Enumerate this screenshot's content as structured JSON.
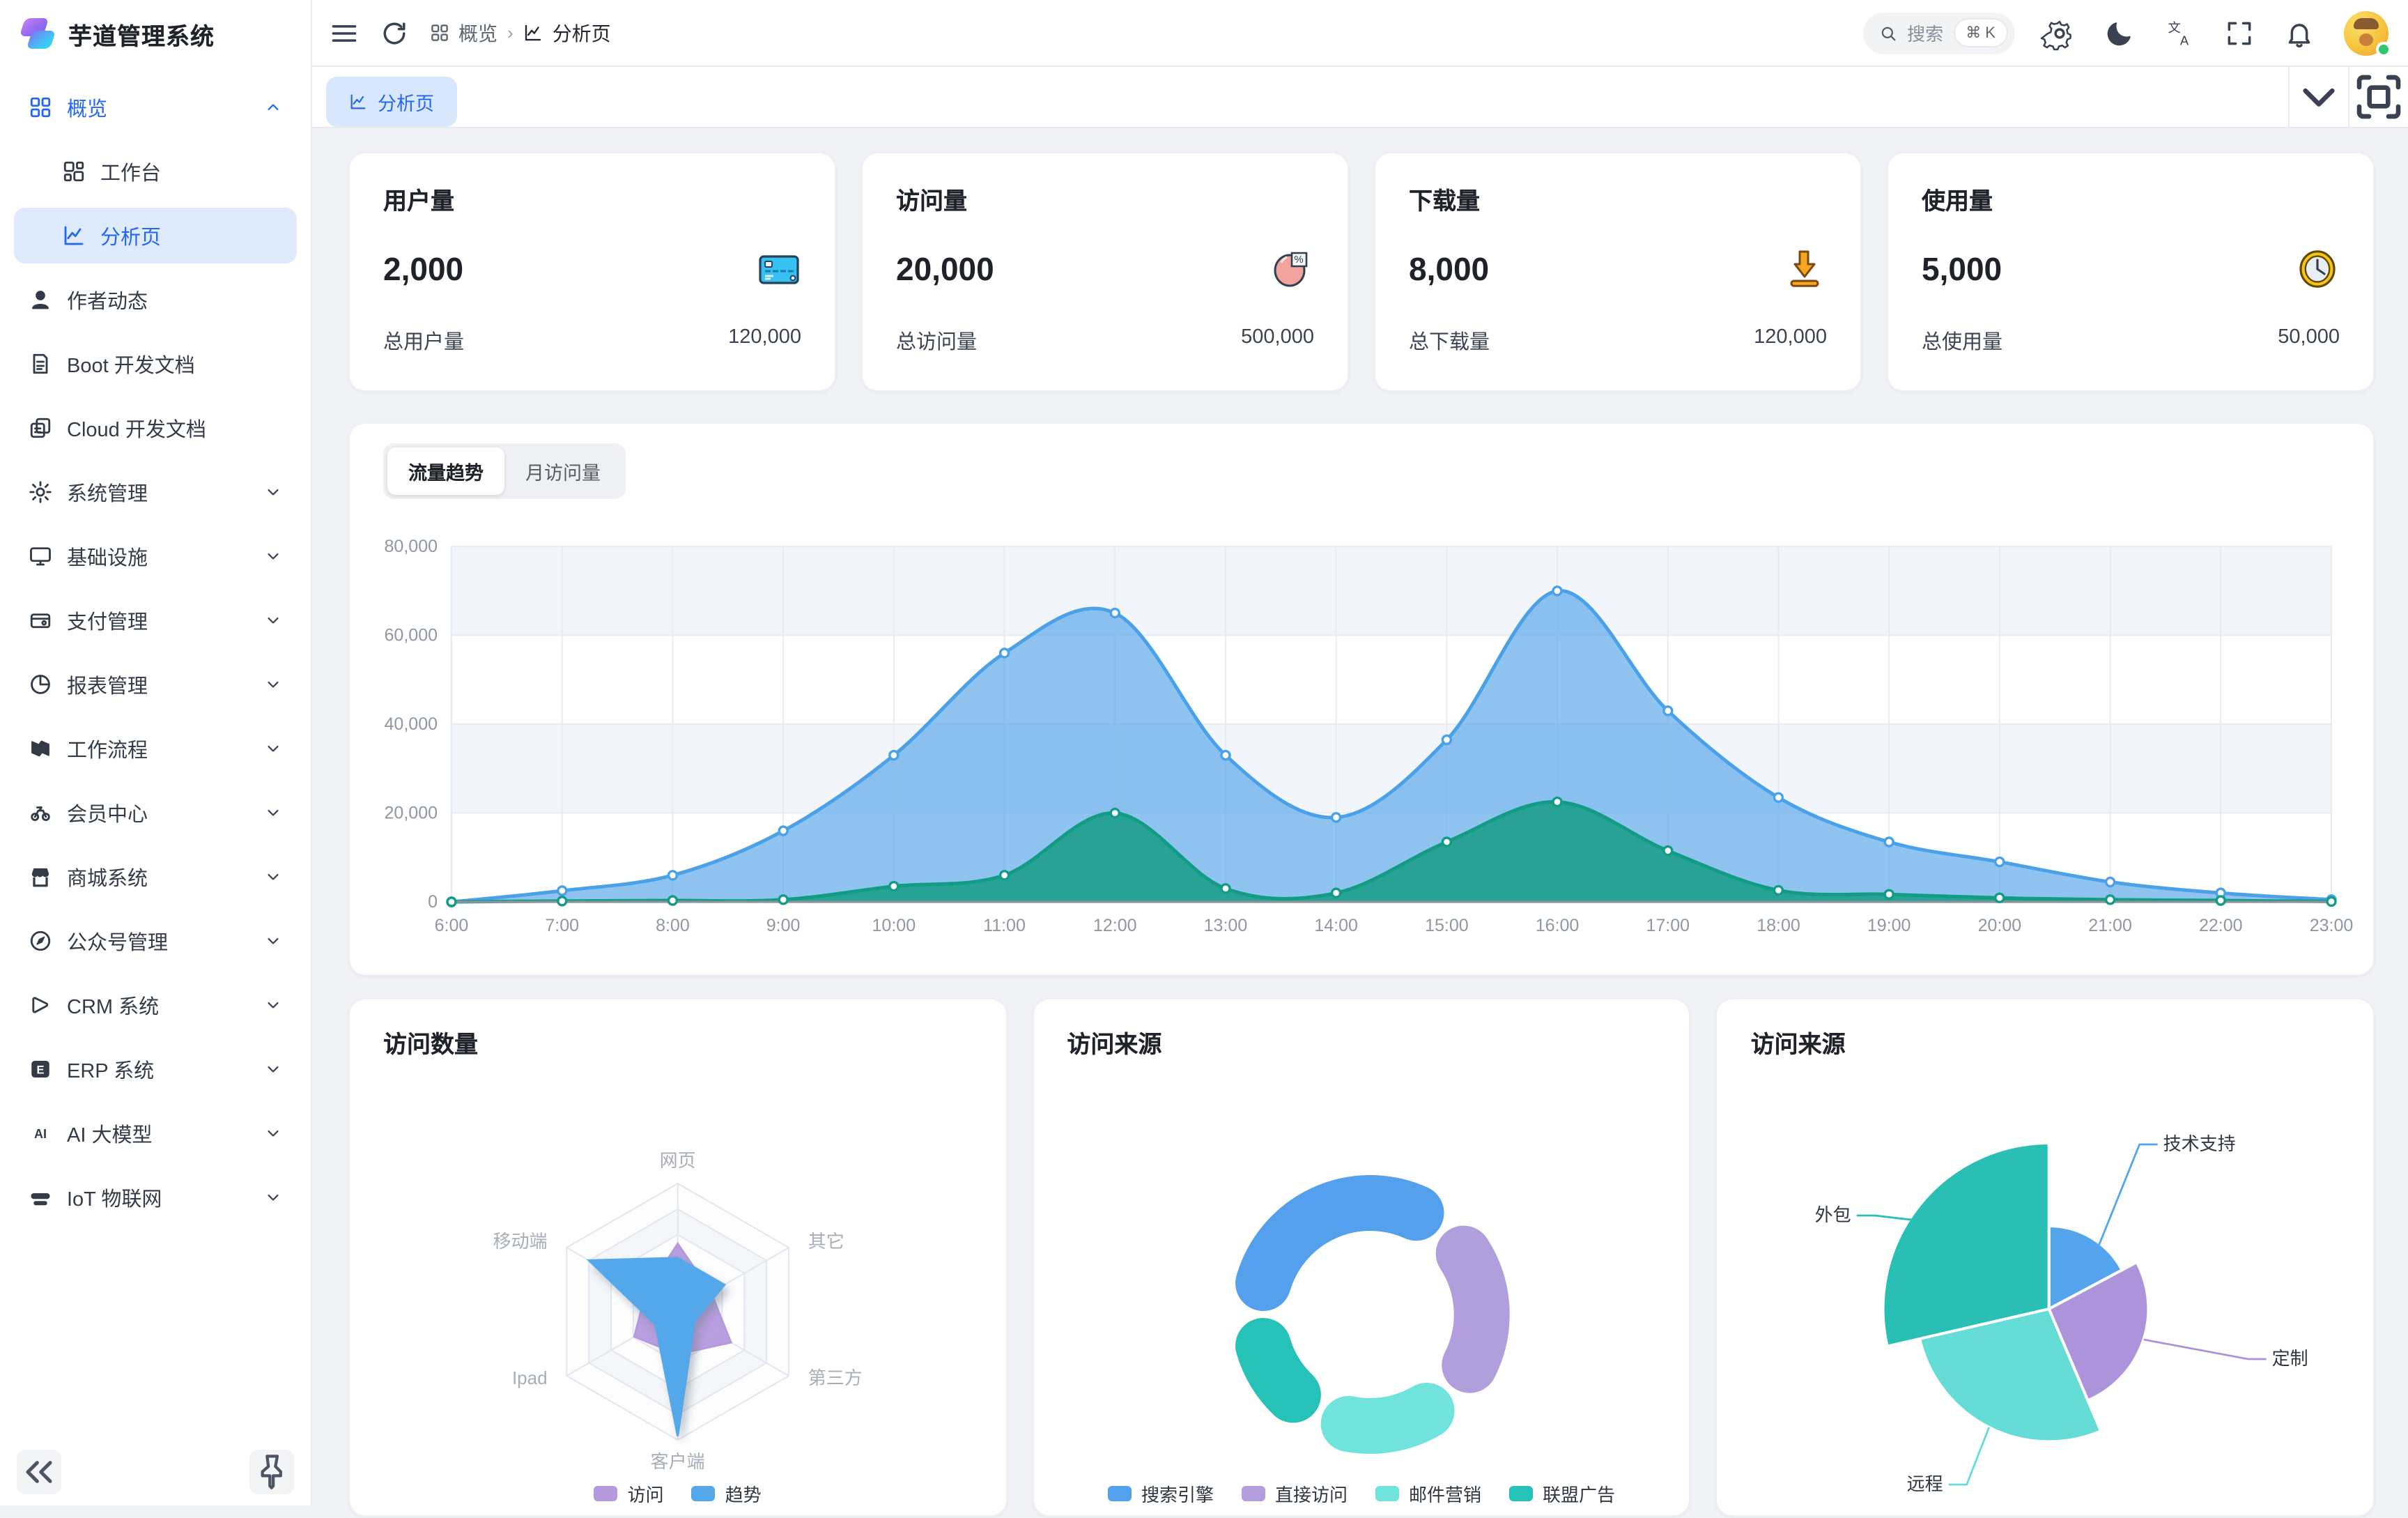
{
  "app": {
    "title": "芋道管理系统"
  },
  "sidebar": {
    "items": [
      {
        "label": "概览",
        "icon": "grid-icon",
        "expanded": true,
        "highlighted": true,
        "children": [
          {
            "label": "工作台",
            "icon": "workbench-icon",
            "active": false
          },
          {
            "label": "分析页",
            "icon": "analytics-icon",
            "active": true
          }
        ]
      },
      {
        "label": "作者动态",
        "icon": "user-icon"
      },
      {
        "label": "Boot 开发文档",
        "icon": "document-icon"
      },
      {
        "label": "Cloud 开发文档",
        "icon": "copy-icon"
      },
      {
        "label": "系统管理",
        "icon": "gear-icon",
        "expandable": true
      },
      {
        "label": "基础设施",
        "icon": "monitor-icon",
        "expandable": true
      },
      {
        "label": "支付管理",
        "icon": "wallet-icon",
        "expandable": true
      },
      {
        "label": "报表管理",
        "icon": "report-icon",
        "expandable": true
      },
      {
        "label": "工作流程",
        "icon": "workflow-icon",
        "expandable": true
      },
      {
        "label": "会员中心",
        "icon": "member-icon",
        "expandable": true
      },
      {
        "label": "商城系统",
        "icon": "store-icon",
        "expandable": true
      },
      {
        "label": "公众号管理",
        "icon": "compass-icon",
        "expandable": true
      },
      {
        "label": "CRM 系统",
        "icon": "crm-icon",
        "expandable": true
      },
      {
        "label": "ERP 系统",
        "icon": "erp-icon",
        "expandable": true
      },
      {
        "label": "AI 大模型",
        "icon": "ai-icon",
        "expandable": true
      },
      {
        "label": "IoT 物联网",
        "icon": "iot-icon",
        "expandable": true
      }
    ],
    "footer": {
      "collapse_icon": "collapse-icon",
      "pin_icon": "pin-icon"
    }
  },
  "topbar": {
    "breadcrumb": [
      {
        "label": "概览",
        "icon": "grid-icon"
      },
      {
        "label": "分析页",
        "icon": "analytics-icon"
      }
    ],
    "search": {
      "placeholder": "搜索",
      "shortcut": "⌘ K"
    }
  },
  "tabbar": {
    "active_tab": "分析页"
  },
  "stats": [
    {
      "title": "用户量",
      "value": "2,000",
      "icon": "credit-card-icon",
      "total_label": "总用户量",
      "total_value": "120,000"
    },
    {
      "title": "访问量",
      "value": "20,000",
      "icon": "pie-percent-icon",
      "total_label": "总访问量",
      "total_value": "500,000"
    },
    {
      "title": "下载量",
      "value": "8,000",
      "icon": "download-icon",
      "total_label": "总下载量",
      "total_value": "120,000"
    },
    {
      "title": "使用量",
      "value": "5,000",
      "icon": "clock-icon",
      "total_label": "总使用量",
      "total_value": "50,000"
    }
  ],
  "traffic_card": {
    "tabs": [
      "流量趋势",
      "月访问量"
    ],
    "active_tab": "流量趋势"
  },
  "bottom_cards": [
    {
      "title": "访问数量"
    },
    {
      "title": "访问来源"
    },
    {
      "title": "访问来源"
    }
  ],
  "chart_data": [
    {
      "type": "area",
      "title": "流量趋势",
      "x": [
        "6:00",
        "7:00",
        "8:00",
        "9:00",
        "10:00",
        "11:00",
        "12:00",
        "13:00",
        "14:00",
        "15:00",
        "16:00",
        "17:00",
        "18:00",
        "19:00",
        "20:00",
        "21:00",
        "22:00",
        "23:00"
      ],
      "series": [
        {
          "name": "series-blue",
          "color": "#4ba1e8",
          "fill": "rgba(74,160,232,0.62)",
          "values": [
            0,
            2500,
            6000,
            16000,
            33000,
            56000,
            65000,
            33000,
            19000,
            36500,
            70000,
            43000,
            23500,
            13500,
            9000,
            4500,
            2000,
            500
          ]
        },
        {
          "name": "series-green",
          "color": "#129c85",
          "fill": "rgba(23,156,134,0.85)",
          "values": [
            0,
            200,
            300,
            500,
            3500,
            6000,
            20000,
            3000,
            2000,
            13500,
            22500,
            11500,
            2600,
            1700,
            900,
            500,
            300,
            100
          ]
        }
      ],
      "ylim": [
        0,
        80000
      ],
      "yticks": [
        "0",
        "20,000",
        "40,000",
        "60,000",
        "80,000"
      ],
      "grid": true,
      "legend_position": "none"
    },
    {
      "type": "radar",
      "title": "访问数量",
      "axes": [
        "网页",
        "其它",
        "第三方",
        "客户端",
        "Ipad",
        "移动端"
      ],
      "max": 1,
      "series": [
        {
          "name": "访问",
          "color": "#b49add",
          "values": [
            0.53,
            0.3,
            0.48,
            0.33,
            0.39,
            0.29
          ]
        },
        {
          "name": "趋势",
          "color": "#54a8ea",
          "values": [
            0.42,
            0.42,
            0.15,
            0.97,
            0.2,
            0.8
          ]
        }
      ],
      "legend_position": "bottom"
    },
    {
      "type": "pie",
      "subtype": "donut",
      "title": "访问来源",
      "slices": [
        {
          "name": "搜索引擎",
          "color": "#55a0ec",
          "fraction": 0.368
        },
        {
          "name": "直接访问",
          "color": "#b09fdc",
          "fraction": 0.258
        },
        {
          "name": "邮件营销",
          "color": "#6fe3dc",
          "fraction": 0.204
        },
        {
          "name": "联盟广告",
          "color": "#27c2b7",
          "fraction": 0.17
        }
      ],
      "legend_position": "bottom"
    },
    {
      "type": "pie",
      "subtype": "rose",
      "title": "访问来源",
      "slices": [
        {
          "name": "技术支持",
          "color": "#55a4ee",
          "angle_deg": 62,
          "radius_frac": 0.5
        },
        {
          "name": "定制",
          "color": "#ab94da",
          "angle_deg": 95,
          "radius_frac": 0.6
        },
        {
          "name": "远程",
          "color": "#65dcd5",
          "angle_deg": 100,
          "radius_frac": 0.8
        },
        {
          "name": "外包",
          "color": "#2abfb4",
          "angle_deg": 103,
          "radius_frac": 1.0
        }
      ],
      "labels_on_chart": true
    }
  ]
}
